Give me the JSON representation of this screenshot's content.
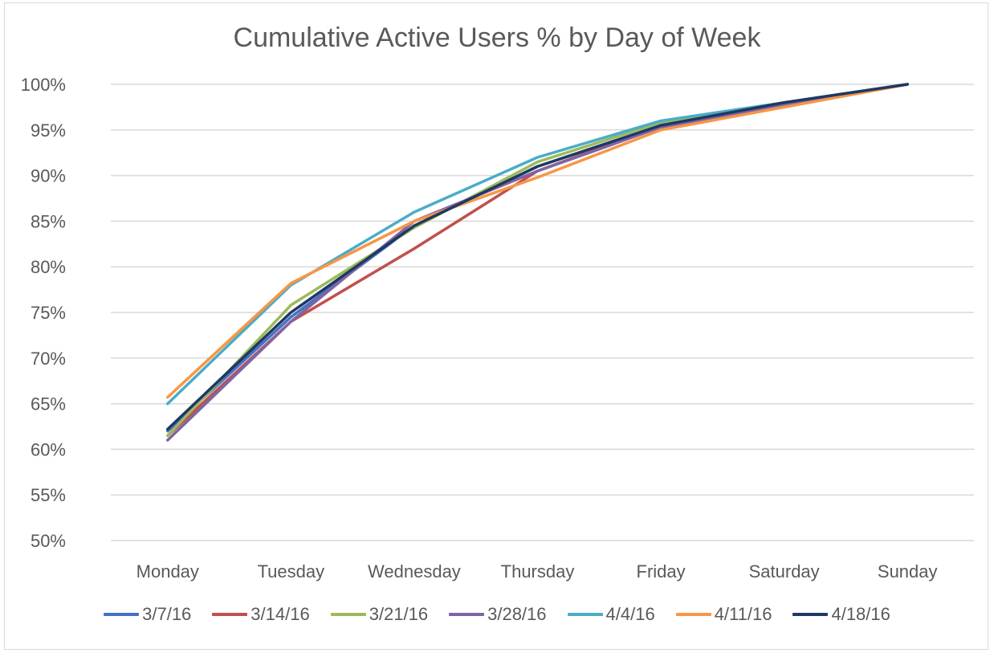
{
  "chart_data": {
    "type": "line",
    "title": "Cumulative Active Users % by Day of Week",
    "xlabel": "",
    "ylabel": "",
    "categories": [
      "Monday",
      "Tuesday",
      "Wednesday",
      "Thursday",
      "Friday",
      "Saturday",
      "Sunday"
    ],
    "ylim": [
      50,
      100
    ],
    "yticks": [
      50,
      55,
      60,
      65,
      70,
      75,
      80,
      85,
      90,
      95,
      100
    ],
    "ytick_labels": [
      "50%",
      "55%",
      "60%",
      "65%",
      "70%",
      "75%",
      "80%",
      "85%",
      "90%",
      "95%",
      "100%"
    ],
    "grid": true,
    "legend_position": "bottom",
    "series": [
      {
        "name": "3/7/16",
        "color": "#4472c4",
        "values": [
          62.0,
          74.5,
          84.5,
          91.0,
          95.5,
          98.0,
          100
        ]
      },
      {
        "name": "3/14/16",
        "color": "#c0504d",
        "values": [
          61.5,
          74.0,
          82.0,
          90.5,
          95.5,
          98.0,
          100
        ]
      },
      {
        "name": "3/21/16",
        "color": "#9bbb59",
        "values": [
          61.5,
          75.8,
          84.3,
          91.5,
          95.8,
          98.0,
          100
        ]
      },
      {
        "name": "3/28/16",
        "color": "#8064a2",
        "values": [
          61.0,
          74.0,
          85.0,
          90.5,
          95.3,
          97.8,
          100
        ]
      },
      {
        "name": "4/4/16",
        "color": "#4bacc6",
        "values": [
          65.0,
          78.0,
          86.0,
          92.0,
          96.0,
          98.0,
          100
        ]
      },
      {
        "name": "4/11/16",
        "color": "#f79646",
        "values": [
          65.7,
          78.2,
          85.0,
          89.8,
          95.0,
          97.5,
          100
        ]
      },
      {
        "name": "4/18/16",
        "color": "#1f3864",
        "values": [
          62.2,
          75.0,
          84.5,
          91.0,
          95.5,
          98.0,
          100
        ]
      }
    ]
  }
}
